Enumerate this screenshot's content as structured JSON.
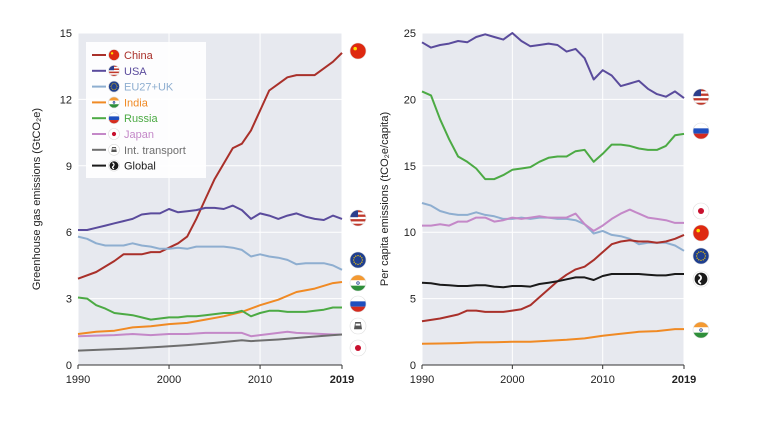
{
  "chart_data": [
    {
      "type": "line",
      "ylabel": "Greenhouse gas emissions (GtCO₂e)",
      "xlim": [
        1990,
        2019
      ],
      "ylim": [
        0,
        15
      ],
      "xticks": [
        "1990",
        "2000",
        "2010",
        "2019"
      ],
      "yticks": [
        "0",
        "3",
        "6",
        "9",
        "12",
        "15"
      ],
      "grid": true,
      "legend": "top-left",
      "series": [
        {
          "name": "China",
          "color": "#a9302a",
          "icon": "china-flag-icon",
          "x": [
            1990,
            1992,
            1994,
            1995,
            1996,
            1997,
            1998,
            1999,
            2000,
            2001,
            2002,
            2003,
            2004,
            2005,
            2006,
            2007,
            2008,
            2009,
            2010,
            2011,
            2012,
            2013,
            2014,
            2015,
            2016,
            2017,
            2018,
            2019
          ],
          "y": [
            3.9,
            4.2,
            4.7,
            5.0,
            5.0,
            5.0,
            5.1,
            5.1,
            5.3,
            5.5,
            5.8,
            6.6,
            7.5,
            8.4,
            9.1,
            9.8,
            10.0,
            10.6,
            11.5,
            12.4,
            12.7,
            13.0,
            13.1,
            13.1,
            13.1,
            13.4,
            13.7,
            14.1
          ]
        },
        {
          "name": "USA",
          "color": "#5a4b9c",
          "icon": "usa-flag-icon",
          "x": [
            1990,
            1991,
            1992,
            1993,
            1994,
            1995,
            1996,
            1997,
            1998,
            1999,
            2000,
            2001,
            2002,
            2003,
            2004,
            2005,
            2006,
            2007,
            2008,
            2009,
            2010,
            2011,
            2012,
            2013,
            2014,
            2015,
            2016,
            2017,
            2018,
            2019
          ],
          "y": [
            6.1,
            6.1,
            6.2,
            6.3,
            6.4,
            6.5,
            6.6,
            6.8,
            6.85,
            6.85,
            7.05,
            6.9,
            6.95,
            7.0,
            7.1,
            7.1,
            7.05,
            7.2,
            7.0,
            6.6,
            6.85,
            6.75,
            6.6,
            6.75,
            6.85,
            6.7,
            6.6,
            6.55,
            6.75,
            6.6
          ]
        },
        {
          "name": "EU27+UK",
          "color": "#8eaed0",
          "icon": "eu-flag-icon",
          "x": [
            1990,
            1991,
            1992,
            1993,
            1994,
            1995,
            1996,
            1997,
            1998,
            1999,
            2000,
            2001,
            2002,
            2003,
            2004,
            2005,
            2006,
            2007,
            2008,
            2009,
            2010,
            2011,
            2012,
            2013,
            2014,
            2015,
            2016,
            2017,
            2018,
            2019
          ],
          "y": [
            5.8,
            5.7,
            5.5,
            5.4,
            5.4,
            5.4,
            5.5,
            5.4,
            5.35,
            5.25,
            5.25,
            5.3,
            5.25,
            5.35,
            5.35,
            5.35,
            5.35,
            5.3,
            5.2,
            4.9,
            5.0,
            4.9,
            4.85,
            4.75,
            4.55,
            4.6,
            4.6,
            4.6,
            4.5,
            4.3
          ]
        },
        {
          "name": "India",
          "color": "#f08a24",
          "icon": "india-flag-icon",
          "x": [
            1990,
            1992,
            1994,
            1996,
            1998,
            2000,
            2002,
            2004,
            2006,
            2008,
            2010,
            2012,
            2014,
            2016,
            2018,
            2019
          ],
          "y": [
            1.4,
            1.5,
            1.55,
            1.7,
            1.75,
            1.85,
            1.9,
            2.05,
            2.2,
            2.4,
            2.7,
            2.95,
            3.3,
            3.45,
            3.7,
            3.75
          ]
        },
        {
          "name": "Russia",
          "color": "#4caa44",
          "icon": "russia-flag-icon",
          "x": [
            1990,
            1991,
            1992,
            1993,
            1994,
            1995,
            1996,
            1997,
            1998,
            1999,
            2000,
            2001,
            2002,
            2003,
            2004,
            2005,
            2006,
            2007,
            2008,
            2009,
            2010,
            2011,
            2012,
            2013,
            2014,
            2015,
            2016,
            2017,
            2018,
            2019
          ],
          "y": [
            3.05,
            3.0,
            2.7,
            2.55,
            2.35,
            2.3,
            2.25,
            2.15,
            2.05,
            2.1,
            2.15,
            2.15,
            2.2,
            2.2,
            2.25,
            2.3,
            2.35,
            2.35,
            2.45,
            2.2,
            2.35,
            2.45,
            2.45,
            2.4,
            2.4,
            2.4,
            2.45,
            2.5,
            2.6,
            2.6
          ]
        },
        {
          "name": "Japan",
          "color": "#c488c8",
          "icon": "japan-flag-icon",
          "x": [
            1990,
            1992,
            1994,
            1996,
            1998,
            2000,
            2002,
            2004,
            2006,
            2008,
            2009,
            2010,
            2012,
            2013,
            2014,
            2016,
            2018,
            2019
          ],
          "y": [
            1.3,
            1.33,
            1.35,
            1.4,
            1.35,
            1.4,
            1.4,
            1.45,
            1.45,
            1.45,
            1.3,
            1.35,
            1.45,
            1.5,
            1.45,
            1.42,
            1.38,
            1.38
          ]
        },
        {
          "name": "Int. transport",
          "color": "#6e6e6e",
          "icon": "transport-icon",
          "x": [
            1990,
            1993,
            1996,
            1999,
            2002,
            2005,
            2008,
            2009,
            2012,
            2015,
            2018,
            2019
          ],
          "y": [
            0.65,
            0.7,
            0.75,
            0.82,
            0.9,
            1.0,
            1.12,
            1.08,
            1.15,
            1.25,
            1.35,
            1.38
          ]
        },
        {
          "name": "Global",
          "color": "#1a1a1a",
          "icon": "globe-icon",
          "x": [],
          "y": []
        }
      ]
    },
    {
      "type": "line",
      "ylabel": "Per capita emissions (tCO₂e/capita)",
      "xlim": [
        1990,
        2019
      ],
      "ylim": [
        0,
        25
      ],
      "xticks": [
        "1990",
        "2000",
        "2010",
        "2019"
      ],
      "yticks": [
        "0",
        "5",
        "10",
        "15",
        "20",
        "25"
      ],
      "grid": true,
      "series": [
        {
          "name": "USA",
          "color": "#5a4b9c",
          "icon": "usa-flag-icon",
          "x": [
            1990,
            1991,
            1992,
            1993,
            1994,
            1995,
            1996,
            1997,
            1998,
            1999,
            2000,
            2001,
            2002,
            2003,
            2004,
            2005,
            2006,
            2007,
            2008,
            2009,
            2010,
            2011,
            2012,
            2013,
            2014,
            2015,
            2016,
            2017,
            2018,
            2019
          ],
          "y": [
            24.3,
            23.9,
            24.1,
            24.2,
            24.4,
            24.3,
            24.7,
            24.9,
            24.7,
            24.5,
            25.0,
            24.4,
            24.0,
            24.1,
            24.2,
            24.1,
            23.6,
            23.8,
            23.1,
            21.5,
            22.2,
            21.8,
            21.0,
            21.2,
            21.4,
            20.8,
            20.4,
            20.2,
            20.6,
            20.1
          ]
        },
        {
          "name": "Russia",
          "color": "#4caa44",
          "icon": "russia-flag-icon",
          "x": [
            1990,
            1991,
            1992,
            1993,
            1994,
            1995,
            1996,
            1997,
            1998,
            1999,
            2000,
            2001,
            2002,
            2003,
            2004,
            2005,
            2006,
            2007,
            2008,
            2009,
            2010,
            2011,
            2012,
            2013,
            2014,
            2015,
            2016,
            2017,
            2018,
            2019
          ],
          "y": [
            20.6,
            20.3,
            18.5,
            17.0,
            15.7,
            15.3,
            14.8,
            14.0,
            14.0,
            14.3,
            14.7,
            14.8,
            14.9,
            15.3,
            15.6,
            15.7,
            15.7,
            16.1,
            16.2,
            15.3,
            15.9,
            16.6,
            16.6,
            16.5,
            16.3,
            16.2,
            16.2,
            16.5,
            17.3,
            17.4
          ]
        },
        {
          "name": "EU27+UK",
          "color": "#8eaed0",
          "icon": "eu-flag-icon",
          "x": [
            1990,
            1991,
            1992,
            1993,
            1994,
            1995,
            1996,
            1997,
            1998,
            1999,
            2000,
            2001,
            2002,
            2003,
            2004,
            2005,
            2006,
            2007,
            2008,
            2009,
            2010,
            2011,
            2012,
            2013,
            2014,
            2015,
            2016,
            2017,
            2018,
            2019
          ],
          "y": [
            12.2,
            12.0,
            11.6,
            11.4,
            11.3,
            11.3,
            11.5,
            11.3,
            11.2,
            11.0,
            11.0,
            11.1,
            11.0,
            11.1,
            11.1,
            11.0,
            11.0,
            10.9,
            10.6,
            9.9,
            10.1,
            9.8,
            9.7,
            9.5,
            9.1,
            9.2,
            9.2,
            9.2,
            9.0,
            8.6
          ]
        },
        {
          "name": "Japan",
          "color": "#c488c8",
          "icon": "japan-flag-icon",
          "x": [
            1990,
            1991,
            1992,
            1993,
            1994,
            1995,
            1996,
            1997,
            1998,
            1999,
            2000,
            2001,
            2002,
            2003,
            2004,
            2005,
            2006,
            2007,
            2008,
            2009,
            2010,
            2011,
            2012,
            2013,
            2014,
            2015,
            2016,
            2017,
            2018,
            2019
          ],
          "y": [
            10.5,
            10.5,
            10.6,
            10.5,
            10.8,
            10.8,
            11.1,
            11.1,
            10.8,
            10.9,
            11.1,
            11.0,
            11.1,
            11.2,
            11.1,
            11.1,
            11.1,
            11.4,
            10.6,
            10.1,
            10.5,
            11.0,
            11.4,
            11.7,
            11.4,
            11.1,
            11.0,
            10.9,
            10.7,
            10.7
          ]
        },
        {
          "name": "China",
          "color": "#a9302a",
          "icon": "china-flag-icon",
          "x": [
            1990,
            1992,
            1994,
            1995,
            1996,
            1997,
            1998,
            1999,
            2000,
            2001,
            2002,
            2003,
            2004,
            2005,
            2006,
            2007,
            2008,
            2009,
            2010,
            2011,
            2012,
            2013,
            2014,
            2015,
            2016,
            2017,
            2018,
            2019
          ],
          "y": [
            3.3,
            3.5,
            3.8,
            4.1,
            4.1,
            4.0,
            4.0,
            4.0,
            4.1,
            4.2,
            4.5,
            5.1,
            5.7,
            6.3,
            6.8,
            7.2,
            7.4,
            7.9,
            8.5,
            9.1,
            9.3,
            9.4,
            9.3,
            9.3,
            9.2,
            9.3,
            9.5,
            9.8
          ]
        },
        {
          "name": "Global",
          "color": "#1a1a1a",
          "icon": "globe-icon",
          "x": [
            1990,
            1991,
            1992,
            1993,
            1994,
            1995,
            1996,
            1997,
            1998,
            1999,
            2000,
            2001,
            2002,
            2003,
            2004,
            2005,
            2006,
            2007,
            2008,
            2009,
            2010,
            2011,
            2012,
            2013,
            2014,
            2015,
            2016,
            2017,
            2018,
            2019
          ],
          "y": [
            6.2,
            6.15,
            6.05,
            6.0,
            5.95,
            5.95,
            6.0,
            6.0,
            5.9,
            5.85,
            5.95,
            5.95,
            5.9,
            6.1,
            6.2,
            6.3,
            6.45,
            6.6,
            6.6,
            6.4,
            6.7,
            6.85,
            6.85,
            6.85,
            6.85,
            6.8,
            6.75,
            6.75,
            6.85,
            6.85
          ]
        },
        {
          "name": "India",
          "color": "#f08a24",
          "icon": "india-flag-icon",
          "x": [
            1990,
            1992,
            1994,
            1996,
            1998,
            2000,
            2002,
            2004,
            2006,
            2008,
            2010,
            2012,
            2014,
            2016,
            2018,
            2019
          ],
          "y": [
            1.6,
            1.62,
            1.65,
            1.7,
            1.72,
            1.75,
            1.75,
            1.82,
            1.9,
            2.0,
            2.2,
            2.35,
            2.5,
            2.55,
            2.7,
            2.7
          ]
        }
      ]
    }
  ]
}
